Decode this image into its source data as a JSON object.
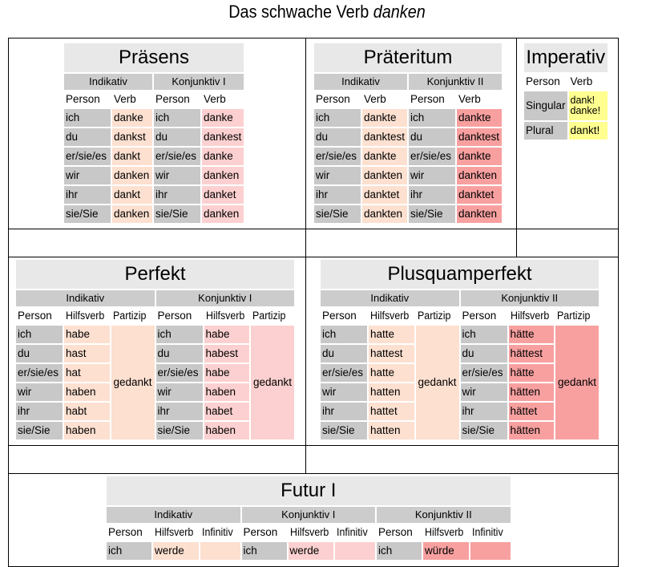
{
  "page": {
    "title_prefix": "Das schwache Verb ",
    "title_verb": "danken"
  },
  "labels": {
    "indikativ": "Indikativ",
    "konj1": "Konjunktiv I",
    "konj2": "Konjunktiv II",
    "person": "Person",
    "verb": "Verb",
    "hilfsverb": "Hilfsverb",
    "partizip": "Partizip",
    "infinitiv": "Infinitiv"
  },
  "persons": [
    "ich",
    "du",
    "er/sie/es",
    "wir",
    "ihr",
    "sie/Sie"
  ],
  "praesens": {
    "title": "Präsens",
    "indikativ": [
      "danke",
      "dankst",
      "dankt",
      "danken",
      "dankt",
      "danken"
    ],
    "konjunktiv": [
      "danke",
      "dankest",
      "danke",
      "danken",
      "danket",
      "danken"
    ]
  },
  "praeteritum": {
    "title": "Präteritum",
    "indikativ": [
      "dankte",
      "danktest",
      "dankte",
      "dankten",
      "danktet",
      "dankten"
    ],
    "konjunktiv": [
      "dankte",
      "danktest",
      "dankte",
      "dankten",
      "danktet",
      "dankten"
    ]
  },
  "imperativ": {
    "title": "Imperativ",
    "singular_label": "Singular",
    "singular_form1": "dank!",
    "singular_form2": "danke!",
    "plural_label": "Plural",
    "plural_form": "dankt!"
  },
  "perfekt": {
    "title": "Perfekt",
    "indikativ": [
      "habe",
      "hast",
      "hat",
      "haben",
      "habt",
      "haben"
    ],
    "konjunktiv": [
      "habe",
      "habest",
      "habe",
      "haben",
      "habet",
      "haben"
    ],
    "partizip": "gedankt"
  },
  "plusquamperfekt": {
    "title": "Plusquamperfekt",
    "indikativ": [
      "hatte",
      "hattest",
      "hatte",
      "hatten",
      "hattet",
      "hatten"
    ],
    "konjunktiv": [
      "hätte",
      "hättest",
      "hätte",
      "hätten",
      "hättet",
      "hätten"
    ],
    "partizip": "gedankt"
  },
  "futur1": {
    "title": "Futur I",
    "row1": [
      "ich",
      "werde",
      "ich",
      "werde",
      "ich",
      "würde"
    ]
  },
  "colors": {
    "person_cell": "#c8c8c8",
    "indikativ_cell": "#fde0d0",
    "konjunktiv1_cell": "#fcd0d0",
    "konjunktiv2_cell": "#f8a0a0",
    "imperativ_cell": "#ffff90"
  }
}
